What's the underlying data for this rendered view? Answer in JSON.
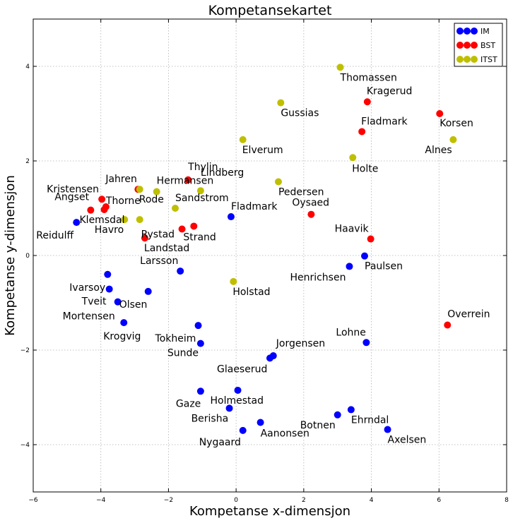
{
  "chart_data": {
    "type": "scatter",
    "title": "Kompetansekartet",
    "xlabel": "Kompetanse x-dimensjon",
    "ylabel": "Kompetanse y-dimensjon",
    "xlim": [
      -6,
      8
    ],
    "ylim": [
      -5,
      5
    ],
    "xticks": [
      "−6",
      "−4",
      "−2",
      "0",
      "2",
      "4",
      "6",
      "8"
    ],
    "yticks": [
      "−4",
      "−2",
      "0",
      "2",
      "4"
    ],
    "grid": true,
    "legend": "upper right",
    "series": [
      {
        "name": "IM",
        "color": "#0000ff",
        "points": [
          {
            "label": "Reidulff",
            "x": -4.72,
            "y": 0.7
          },
          {
            "label": "Fladmark",
            "x": -0.15,
            "y": 0.82
          },
          {
            "label": "Paulsen",
            "x": 3.8,
            "y": -0.01
          },
          {
            "label": "Henrichsen",
            "x": 3.35,
            "y": -0.23
          },
          {
            "label": "Ivarsoy",
            "x": -3.8,
            "y": -0.4
          },
          {
            "label": "Tveit",
            "x": -3.75,
            "y": -0.71
          },
          {
            "label": "Larsson",
            "x": -1.65,
            "y": -0.33
          },
          {
            "label": "Olsen",
            "x": -2.6,
            "y": -0.76
          },
          {
            "label": "Mortensen",
            "x": -3.5,
            "y": -0.98
          },
          {
            "label": "Krogvig",
            "x": -3.32,
            "y": -1.42
          },
          {
            "label": "Tokheim",
            "x": -1.12,
            "y": -1.48
          },
          {
            "label": "Sunde",
            "x": -1.05,
            "y": -1.86
          },
          {
            "label": "Lohne",
            "x": 3.85,
            "y": -1.84
          },
          {
            "label": "Jorgensen",
            "x": 1.1,
            "y": -2.12
          },
          {
            "label": "Glaeserud",
            "x": 1.0,
            "y": -2.17
          },
          {
            "label": "Gaze",
            "x": -1.05,
            "y": -2.87
          },
          {
            "label": "Holmestad",
            "x": 0.05,
            "y": -2.85
          },
          {
            "label": "Berisha",
            "x": -0.2,
            "y": -3.23
          },
          {
            "label": "Botnen",
            "x": 3.0,
            "y": -3.37
          },
          {
            "label": "Ehrndal",
            "x": 3.4,
            "y": -3.26
          },
          {
            "label": "Aanonsen",
            "x": 0.72,
            "y": -3.53
          },
          {
            "label": "Nygaard",
            "x": 0.2,
            "y": -3.7
          },
          {
            "label": "Axelsen",
            "x": 4.48,
            "y": -3.68
          }
        ]
      },
      {
        "name": "BST",
        "color": "#ff0000",
        "points": [
          {
            "label": "Kragerud",
            "x": 3.88,
            "y": 3.25
          },
          {
            "label": "Korsen",
            "x": 6.02,
            "y": 3.0
          },
          {
            "label": "Fladmark",
            "x": 3.72,
            "y": 2.62
          },
          {
            "label": "Thylin",
            "x": -1.42,
            "y": 1.6
          },
          {
            "label": "Jahren",
            "x": -2.9,
            "y": 1.4
          },
          {
            "label": "Kristensen",
            "x": -3.97,
            "y": 1.19
          },
          {
            "label": "Angset",
            "x": -4.3,
            "y": 0.96
          },
          {
            "label": "Thorne",
            "x": -3.85,
            "y": 1.03
          },
          {
            "label": "Klemsdal",
            "x": -3.9,
            "y": 0.97
          },
          {
            "label": "Oysaed",
            "x": 2.22,
            "y": 0.87
          },
          {
            "label": "Strand",
            "x": -1.25,
            "y": 0.62
          },
          {
            "label": "Rystad",
            "x": -1.6,
            "y": 0.56
          },
          {
            "label": "Landstad",
            "x": -2.7,
            "y": 0.37
          },
          {
            "label": "Haavik",
            "x": 3.98,
            "y": 0.35
          },
          {
            "label": "Overrein",
            "x": 6.25,
            "y": -1.47
          }
        ]
      },
      {
        "name": "ITST",
        "color": "#bfbf00",
        "points": [
          {
            "label": "Thomassen",
            "x": 3.08,
            "y": 3.98
          },
          {
            "label": "Gussias",
            "x": 1.32,
            "y": 3.23
          },
          {
            "label": "Alnes",
            "x": 6.42,
            "y": 2.45
          },
          {
            "label": "Elverum",
            "x": 0.2,
            "y": 2.45
          },
          {
            "label": "Holte",
            "x": 3.45,
            "y": 2.07
          },
          {
            "label": "Pedersen",
            "x": 1.25,
            "y": 1.56
          },
          {
            "label": "Lindberg",
            "x": -1.05,
            "y": 1.37
          },
          {
            "label": "Hermansen",
            "x": -2.35,
            "y": 1.35
          },
          {
            "label": "Rode",
            "x": -2.85,
            "y": 1.4
          },
          {
            "label": "Sandstrom",
            "x": -1.8,
            "y": 1.0
          },
          {
            "label": "Havro",
            "x": -2.85,
            "y": 0.76
          },
          {
            "label": "Holstad",
            "x": -0.08,
            "y": -0.55
          },
          {
            "label": "",
            "x": -3.3,
            "y": 0.76
          }
        ]
      }
    ]
  }
}
